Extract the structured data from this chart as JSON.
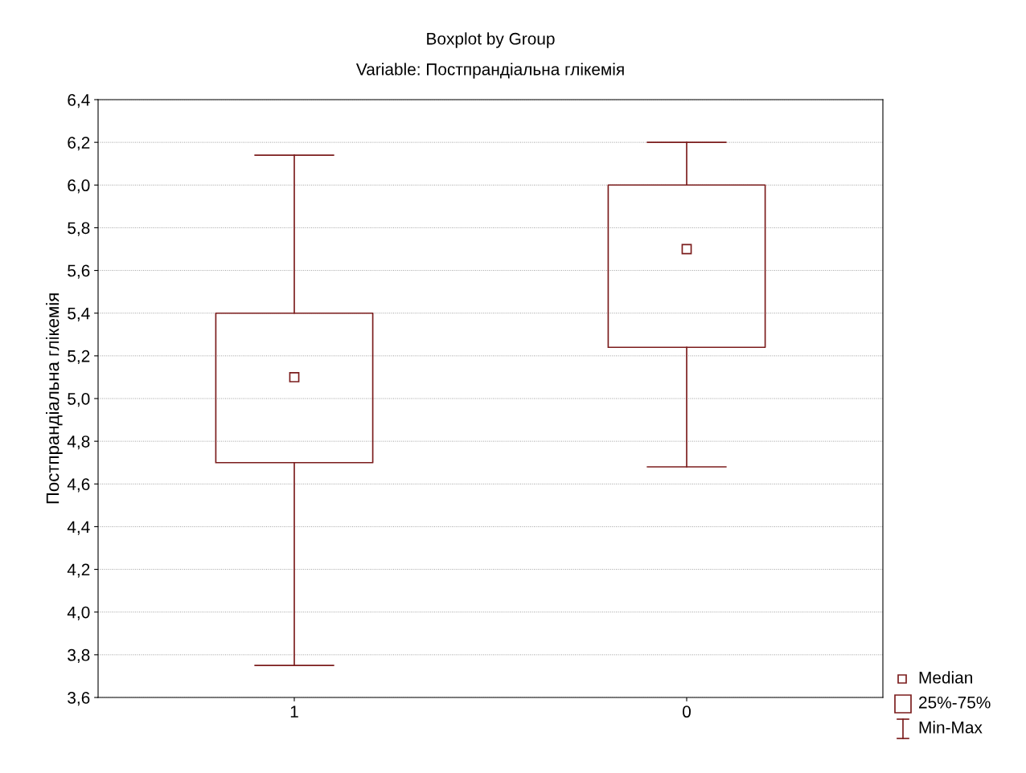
{
  "chart_data": {
    "type": "box",
    "title": "Boxplot by Group",
    "subtitle": "Variable: Постпрандіальна глікемія",
    "ylabel": "Постпрандіальна глікемія",
    "categories": [
      "1",
      "0"
    ],
    "boxes": [
      {
        "low": 3.75,
        "q1": 4.7,
        "median": 5.1,
        "q3": 5.4,
        "high": 6.14
      },
      {
        "low": 4.68,
        "q1": 5.24,
        "median": 5.7,
        "q3": 6.0,
        "high": 6.2
      }
    ],
    "color": "#7b1c1c",
    "marker": "square",
    "ylim": [
      3.6,
      6.4
    ],
    "yticks": [
      {
        "value": 3.6,
        "label": "3,6"
      },
      {
        "value": 3.8,
        "label": "3,8"
      },
      {
        "value": 4.0,
        "label": "4,0"
      },
      {
        "value": 4.2,
        "label": "4,2"
      },
      {
        "value": 4.4,
        "label": "4,4"
      },
      {
        "value": 4.6,
        "label": "4,6"
      },
      {
        "value": 4.8,
        "label": "4,8"
      },
      {
        "value": 5.0,
        "label": "5,0"
      },
      {
        "value": 5.2,
        "label": "5,2"
      },
      {
        "value": 5.4,
        "label": "5,4"
      },
      {
        "value": 5.6,
        "label": "5,6"
      },
      {
        "value": 5.8,
        "label": "5,8"
      },
      {
        "value": 6.0,
        "label": "6,0"
      },
      {
        "value": 6.2,
        "label": "6,2"
      },
      {
        "value": 6.4,
        "label": "6,4"
      }
    ],
    "grid": "y",
    "annotations": [
      "Median",
      "25%-75%",
      "Min-Max"
    ]
  }
}
